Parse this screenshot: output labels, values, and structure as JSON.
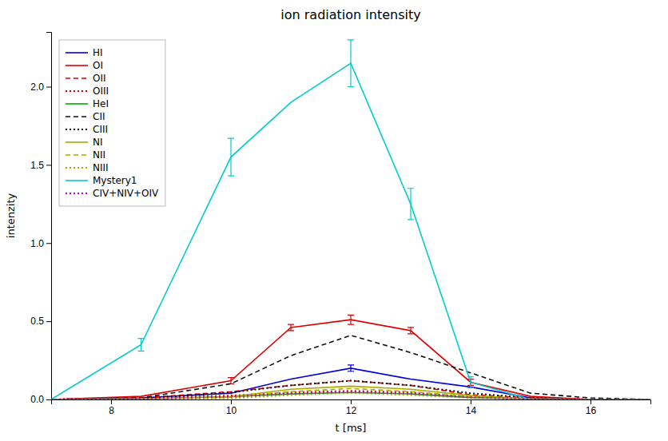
{
  "chart_data": {
    "type": "line",
    "title": "ion radiation intensity",
    "xlabel": "t [ms]",
    "ylabel": "intenzity",
    "x": [
      7.0,
      8.5,
      10.0,
      11.0,
      12.0,
      13.0,
      14.0,
      15.0,
      16.0,
      17.0
    ],
    "series": [
      {
        "name": "HI",
        "color": "#0000dd",
        "line_style": "solid",
        "values": [
          0.0,
          0.01,
          0.04,
          0.13,
          0.2,
          0.13,
          0.08,
          0.01,
          0.0,
          0.0
        ],
        "errors": [
          0.0,
          0.0,
          0.0,
          0.0,
          0.02,
          0.0,
          0.0,
          0.0,
          0.0,
          0.0
        ]
      },
      {
        "name": "OI",
        "color": "#dd0000",
        "line_style": "solid",
        "values": [
          0.0,
          0.02,
          0.12,
          0.46,
          0.51,
          0.44,
          0.11,
          0.02,
          0.0,
          0.0
        ],
        "errors": [
          0.0,
          0.0,
          0.02,
          0.02,
          0.03,
          0.02,
          0.02,
          0.0,
          0.0,
          0.0
        ]
      },
      {
        "name": "OII",
        "color": "#dd0000",
        "line_style": "dashed",
        "values": [
          0.0,
          0.01,
          0.05,
          0.09,
          0.12,
          0.09,
          0.03,
          0.01,
          0.0,
          0.0
        ],
        "errors": [
          0.0,
          0.0,
          0.0,
          0.0,
          0.0,
          0.0,
          0.0,
          0.0,
          0.0,
          0.0
        ]
      },
      {
        "name": "OIII",
        "color": "#dd0000",
        "line_style": "dotted",
        "values": [
          0.0,
          0.008,
          0.025,
          0.045,
          0.055,
          0.045,
          0.015,
          0.008,
          0.0,
          0.0
        ],
        "errors": [
          0.0,
          0.0,
          0.0,
          0.0,
          0.0,
          0.0,
          0.0,
          0.0,
          0.0,
          0.0
        ]
      },
      {
        "name": "HeI",
        "color": "#00aa00",
        "line_style": "solid",
        "values": [
          0.0,
          0.004,
          0.018,
          0.035,
          0.045,
          0.035,
          0.012,
          0.004,
          0.0,
          0.0
        ],
        "errors": [
          0.0,
          0.0,
          0.0,
          0.0,
          0.0,
          0.0,
          0.0,
          0.0,
          0.0,
          0.0
        ]
      },
      {
        "name": "CII",
        "color": "#111111",
        "line_style": "dashed",
        "values": [
          0.0,
          0.01,
          0.1,
          0.28,
          0.41,
          0.3,
          0.17,
          0.04,
          0.01,
          0.0
        ],
        "errors": [
          0.0,
          0.0,
          0.0,
          0.0,
          0.0,
          0.0,
          0.0,
          0.0,
          0.0,
          0.0
        ]
      },
      {
        "name": "CIII",
        "color": "#111111",
        "line_style": "dotted",
        "values": [
          0.0,
          0.005,
          0.045,
          0.09,
          0.12,
          0.09,
          0.04,
          0.01,
          0.0,
          0.0
        ],
        "errors": [
          0.0,
          0.0,
          0.0,
          0.0,
          0.0,
          0.0,
          0.0,
          0.0,
          0.0,
          0.0
        ]
      },
      {
        "name": "NI",
        "color": "#aaaa00",
        "line_style": "solid",
        "values": [
          0.0,
          0.004,
          0.018,
          0.065,
          0.085,
          0.065,
          0.025,
          0.004,
          0.0,
          0.0
        ],
        "errors": [
          0.0,
          0.0,
          0.0,
          0.0,
          0.0,
          0.0,
          0.0,
          0.0,
          0.0,
          0.0
        ]
      },
      {
        "name": "NII",
        "color": "#aaaa00",
        "line_style": "dashed",
        "values": [
          0.0,
          0.003,
          0.013,
          0.05,
          0.07,
          0.05,
          0.018,
          0.003,
          0.0,
          0.0
        ],
        "errors": [
          0.0,
          0.0,
          0.0,
          0.0,
          0.0,
          0.0,
          0.0,
          0.0,
          0.0,
          0.0
        ]
      },
      {
        "name": "NIII",
        "color": "#aaaa00",
        "line_style": "dotted",
        "values": [
          0.0,
          0.002,
          0.008,
          0.028,
          0.042,
          0.028,
          0.01,
          0.002,
          0.0,
          0.0
        ],
        "errors": [
          0.0,
          0.0,
          0.0,
          0.0,
          0.0,
          0.0,
          0.0,
          0.0,
          0.0,
          0.0
        ]
      },
      {
        "name": "Mystery1",
        "color": "#00cccc",
        "line_style": "solid",
        "values": [
          0.0,
          0.35,
          1.55,
          1.9,
          2.15,
          1.25,
          0.11,
          0.0,
          0.0,
          0.0
        ],
        "errors": [
          0.0,
          0.04,
          0.12,
          0.0,
          0.15,
          0.1,
          0.035,
          0.0,
          0.0,
          0.0
        ]
      },
      {
        "name": "CIV+NIV+OIV",
        "color": "#cc00cc",
        "line_style": "dotted",
        "values": [
          0.0,
          0.004,
          0.018,
          0.038,
          0.048,
          0.038,
          0.013,
          0.004,
          0.0,
          0.0
        ],
        "errors": [
          0.0,
          0.0,
          0.0,
          0.0,
          0.0,
          0.0,
          0.0,
          0.0,
          0.0,
          0.0
        ]
      }
    ],
    "xlim": [
      7.0,
      17.0
    ],
    "ylim": [
      0.0,
      2.35
    ],
    "xticks": [
      8,
      10,
      12,
      14,
      16
    ],
    "yticks": [
      {
        "value": 0.0,
        "label": "0.0"
      },
      0.5,
      {
        "value": 1.0,
        "label": "1.0"
      },
      1.5,
      {
        "value": 2.0,
        "label": "2.0"
      }
    ],
    "legend": "upper left",
    "grid": false
  }
}
